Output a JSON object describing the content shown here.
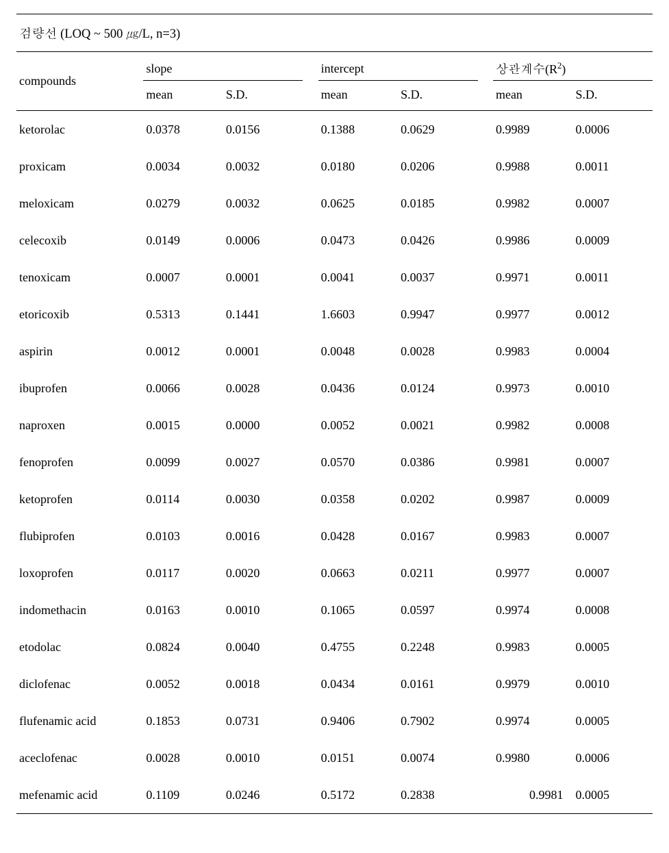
{
  "colors": {
    "background": "#ffffff",
    "text": "#000000",
    "rule": "#000000"
  },
  "typography": {
    "font_family": "Times New Roman / Batang serif",
    "base_size_pt": 13.5
  },
  "title": "검량선 (LOQ ~ 500 ㎍/L, n=3)",
  "headers": {
    "compounds": "compounds",
    "groups": {
      "slope": "slope",
      "intercept": "intercept",
      "r2_html": "상관계수(R<sup>2</sup>)"
    },
    "sub": {
      "mean": "mean",
      "sd": "S.D."
    }
  },
  "rows": [
    {
      "compound": "ketorolac",
      "sm": "0.0378",
      "ssd": "0.0156",
      "im": "0.1388",
      "isd": "0.0629",
      "rm": "0.9989",
      "rsd": "0.0006"
    },
    {
      "compound": "proxicam",
      "sm": "0.0034",
      "ssd": "0.0032",
      "im": "0.0180",
      "isd": "0.0206",
      "rm": "0.9988",
      "rsd": "0.0011"
    },
    {
      "compound": "meloxicam",
      "sm": "0.0279",
      "ssd": "0.0032",
      "im": "0.0625",
      "isd": "0.0185",
      "rm": "0.9982",
      "rsd": "0.0007"
    },
    {
      "compound": "celecoxib",
      "sm": "0.0149",
      "ssd": "0.0006",
      "im": "0.0473",
      "isd": "0.0426",
      "rm": "0.9986",
      "rsd": "0.0009"
    },
    {
      "compound": "tenoxicam",
      "sm": "0.0007",
      "ssd": "0.0001",
      "im": "0.0041",
      "isd": "0.0037",
      "rm": "0.9971",
      "rsd": "0.0011"
    },
    {
      "compound": "etoricoxib",
      "sm": "0.5313",
      "ssd": "0.1441",
      "im": "1.6603",
      "isd": "0.9947",
      "rm": "0.9977",
      "rsd": "0.0012"
    },
    {
      "compound": "aspirin",
      "sm": "0.0012",
      "ssd": "0.0001",
      "im": "0.0048",
      "isd": "0.0028",
      "rm": "0.9983",
      "rsd": "0.0004"
    },
    {
      "compound": "ibuprofen",
      "sm": "0.0066",
      "ssd": "0.0028",
      "im": "0.0436",
      "isd": "0.0124",
      "rm": "0.9973",
      "rsd": "0.0010"
    },
    {
      "compound": "naproxen",
      "sm": "0.0015",
      "ssd": "0.0000",
      "im": "0.0052",
      "isd": "0.0021",
      "rm": "0.9982",
      "rsd": "0.0008"
    },
    {
      "compound": "fenoprofen",
      "sm": "0.0099",
      "ssd": "0.0027",
      "im": "0.0570",
      "isd": "0.0386",
      "rm": "0.9981",
      "rsd": "0.0007"
    },
    {
      "compound": "ketoprofen",
      "sm": "0.0114",
      "ssd": "0.0030",
      "im": "0.0358",
      "isd": "0.0202",
      "rm": "0.9987",
      "rsd": "0.0009"
    },
    {
      "compound": "flubiprofen",
      "sm": "0.0103",
      "ssd": "0.0016",
      "im": "0.0428",
      "isd": "0.0167",
      "rm": "0.9983",
      "rsd": "0.0007"
    },
    {
      "compound": "loxoprofen",
      "sm": "0.0117",
      "ssd": "0.0020",
      "im": "0.0663",
      "isd": "0.0211",
      "rm": "0.9977",
      "rsd": "0.0007"
    },
    {
      "compound": "indomethacin",
      "sm": "0.0163",
      "ssd": "0.0010",
      "im": "0.1065",
      "isd": "0.0597",
      "rm": "0.9974",
      "rsd": "0.0008"
    },
    {
      "compound": "etodolac",
      "sm": "0.0824",
      "ssd": "0.0040",
      "im": "0.4755",
      "isd": "0.2248",
      "rm": "0.9983",
      "rsd": "0.0005"
    },
    {
      "compound": "diclofenac",
      "sm": "0.0052",
      "ssd": "0.0018",
      "im": "0.0434",
      "isd": "0.0161",
      "rm": "0.9979",
      "rsd": "0.0010"
    },
    {
      "compound": "flufenamic acid",
      "sm": "0.1853",
      "ssd": "0.0731",
      "im": "0.9406",
      "isd": "0.7902",
      "rm": "0.9974",
      "rsd": "0.0005"
    },
    {
      "compound": "aceclofenac",
      "sm": "0.0028",
      "ssd": "0.0010",
      "im": "0.0151",
      "isd": "0.0074",
      "rm": "0.9980",
      "rsd": "0.0006"
    },
    {
      "compound": "mefenamic acid",
      "sm": "0.1109",
      "ssd": "0.0246",
      "im": "0.5172",
      "isd": "0.2838",
      "rm": "0.9981",
      "rsd": "0.0005",
      "rm_right": true
    }
  ]
}
